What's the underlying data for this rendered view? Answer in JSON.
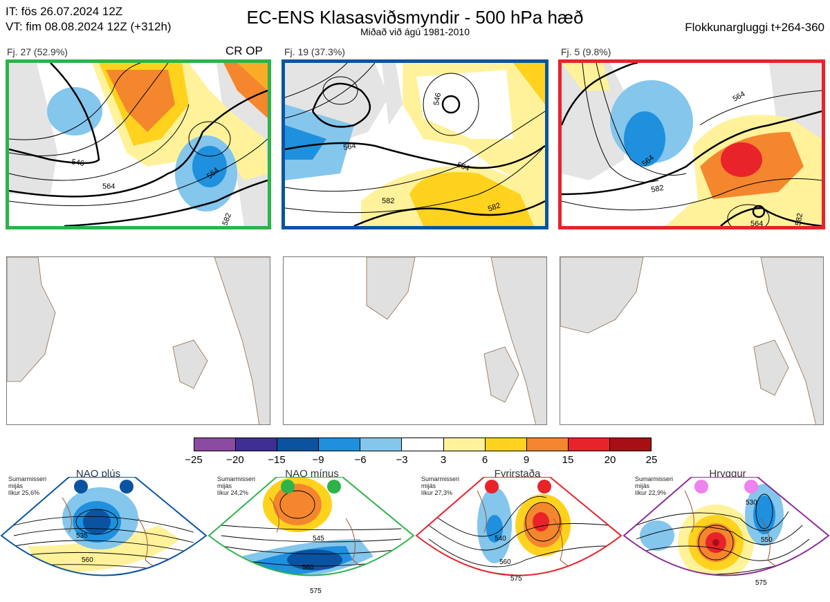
{
  "header": {
    "it_line": "IT: fös 26.07.2024 12Z",
    "vt_line": "VT: fim 08.08.2024 12Z  (+312h)",
    "title": "EC-ENS Klasasviðsmyndir - 500 hPa hæð",
    "subtitle": "Miðað við ágú 1981-2010",
    "window": "Flokkunargluggi t+264-360"
  },
  "clusters": [
    {
      "label": "Fj. 27 (52.9%)",
      "tag": "CR OP",
      "border_color": "#2db34a",
      "contours": [
        "546",
        "564",
        "564",
        "582"
      ]
    },
    {
      "label": "Fj. 19 (37.3%)",
      "tag": "",
      "border_color": "#0a53a0",
      "contours": [
        "564",
        "564",
        "582",
        "582",
        "546"
      ]
    },
    {
      "label": "Fj. 5 (9.8%)",
      "tag": "",
      "border_color": "#e8232a",
      "contours": [
        "564",
        "564",
        "582",
        "564",
        "582"
      ]
    }
  ],
  "legend": {
    "ticks": [
      "−25",
      "−20",
      "−15",
      "−9",
      "−6",
      "−3",
      "3",
      "6",
      "9",
      "15",
      "20",
      "25"
    ],
    "colors": [
      "#8a4ba0",
      "#3f2f93",
      "#0a53a0",
      "#1e90dd",
      "#84c6ec",
      "#ffffff",
      "#fff29a",
      "#ffd21e",
      "#f4862e",
      "#e8232a",
      "#a80f14"
    ]
  },
  "regimes": [
    {
      "name": "NAO plús",
      "note": [
        "Sumarmisseri",
        "mijás",
        "líkur 25,6%"
      ],
      "dot_color": "#0a53a0",
      "border_color": "#0a53a0",
      "contours": [
        "535",
        "560"
      ]
    },
    {
      "name": "NAO mínus",
      "note": [
        "Sumarmisseri",
        "mijás",
        "líkur 24,2%"
      ],
      "dot_color": "#2db34a",
      "border_color": "#2db34a",
      "contours": [
        "545",
        "560",
        "575"
      ]
    },
    {
      "name": "Fyrirstaða",
      "note": [
        "Sumarmisseri",
        "mijás",
        "líkur 27,3%"
      ],
      "dot_color": "#e8232a",
      "border_color": "#e8232a",
      "contours": [
        "540",
        "560",
        "575"
      ]
    },
    {
      "name": "Hryggur",
      "note": [
        "Sumarmisseri",
        "mijás",
        "líkur 22,9%"
      ],
      "dot_color": "#ee82ee",
      "border_color": "#8a2d96",
      "contours": [
        "530",
        "550",
        "575"
      ]
    }
  ]
}
